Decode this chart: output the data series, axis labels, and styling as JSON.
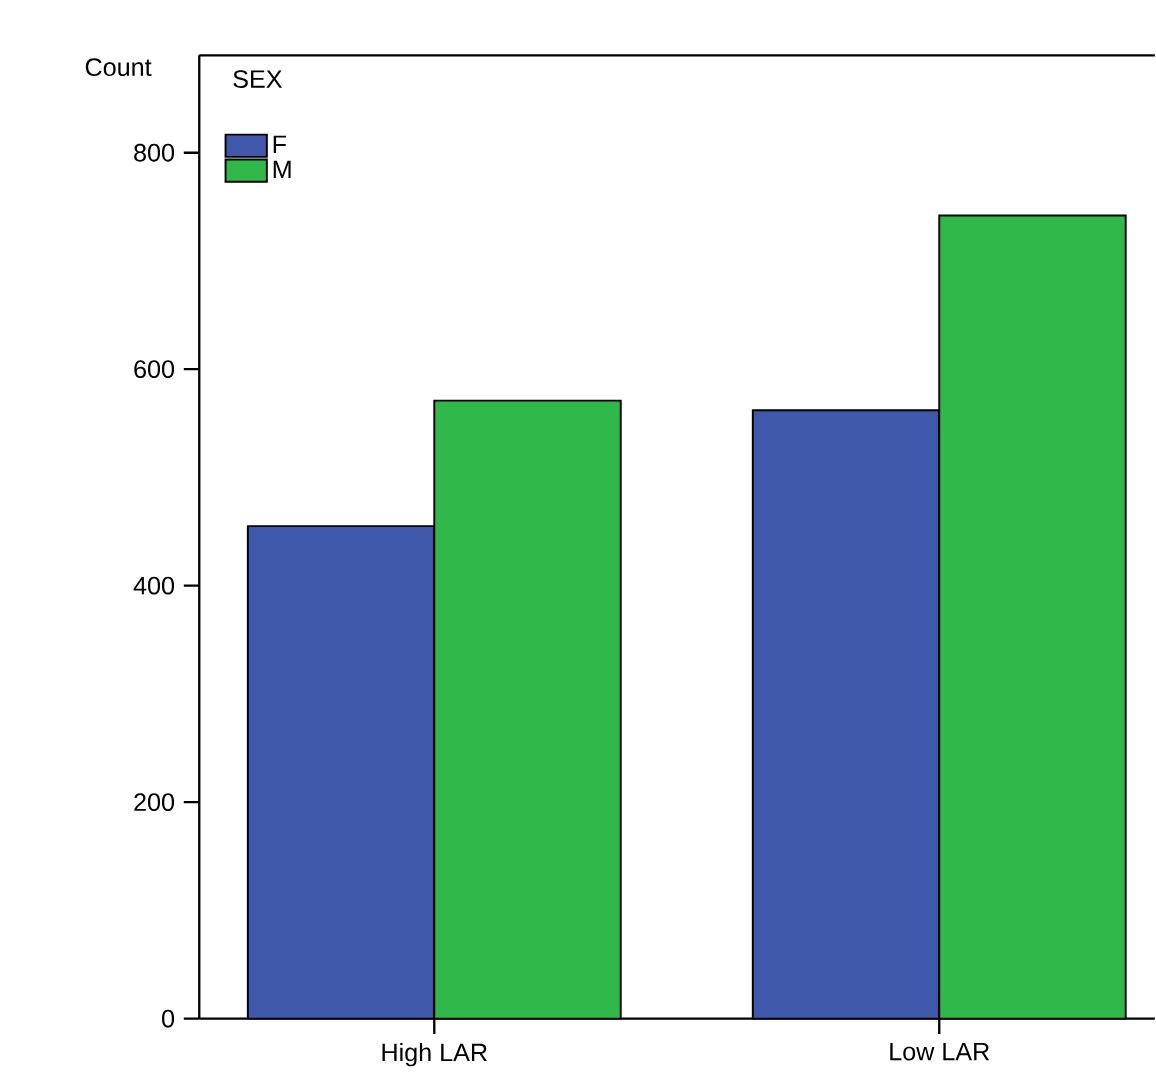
{
  "chart_data": {
    "type": "bar",
    "ylabel": "Count",
    "legend_title": "SEX",
    "legend": "top left",
    "categories": [
      "High LAR",
      "Low LAR"
    ],
    "series": [
      {
        "name": "F",
        "color": "#3f58ab",
        "values": [
          455,
          562
        ]
      },
      {
        "name": "M",
        "color": "#31b84a",
        "values": [
          571,
          742
        ]
      }
    ],
    "ylim": [
      0,
      890
    ],
    "yticks": [
      0,
      200,
      400,
      600,
      800
    ],
    "grid": false
  }
}
